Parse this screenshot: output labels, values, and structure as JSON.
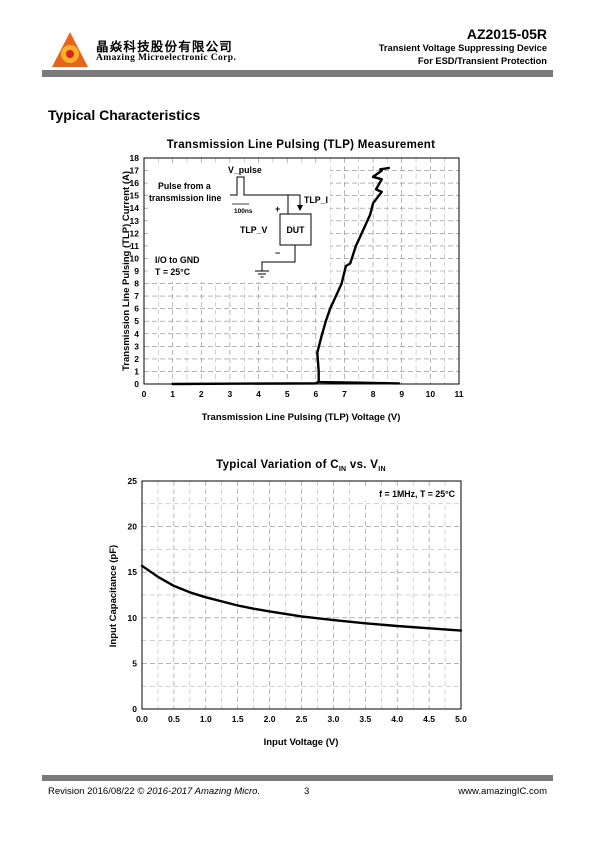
{
  "header": {
    "company_cn": "晶焱科技股份有限公司",
    "company_en": "Amazing Microelectronic Corp.",
    "part_number": "AZ2015-05R",
    "description_line1": "Transient Voltage Suppressing Device",
    "description_line2": "For ESD/Transient Protection",
    "logo_colors": {
      "outer": "#e8631c",
      "inner": "#f6b02a",
      "core": "#d8231f"
    }
  },
  "section_title": "Typical Characteristics",
  "chart_data": [
    {
      "type": "line",
      "title": "Transmission Line Pulsing (TLP) Measurement",
      "xlabel": "Transmission Line Pulsing (TLP) Voltage (V)",
      "ylabel": "Transmission Line Pulsing (TLP) Current (A)",
      "xlim": [
        0,
        11
      ],
      "ylim": [
        0,
        18
      ],
      "xticks": [
        "0",
        "1",
        "2",
        "3",
        "4",
        "5",
        "6",
        "7",
        "8",
        "9",
        "10",
        "11"
      ],
      "yticks": [
        "0",
        "1",
        "2",
        "3",
        "4",
        "5",
        "6",
        "7",
        "8",
        "9",
        "10",
        "11",
        "12",
        "13",
        "14",
        "15",
        "16",
        "17",
        "18"
      ],
      "grid": "dashed",
      "series": [
        {
          "x": [
            1.0,
            3.0,
            5.0,
            6.0,
            6.1,
            6.1,
            6.05,
            6.2,
            6.35,
            6.5,
            6.7,
            6.9,
            7.05,
            7.2,
            7.4,
            7.5,
            7.7,
            7.9,
            8.0,
            8.2,
            8.3,
            8.1,
            8.3,
            8.0,
            8.3,
            8.25,
            8.55
          ],
          "y": [
            0.0,
            0.02,
            0.04,
            0.05,
            0.2,
            1.0,
            2.5,
            3.8,
            5.0,
            6.0,
            7.0,
            8.0,
            9.4,
            9.6,
            11.0,
            11.5,
            12.5,
            13.5,
            14.4,
            15.0,
            15.3,
            15.5,
            16.3,
            16.5,
            17.0,
            17.1,
            17.2
          ]
        },
        {
          "x": [
            6.1,
            7.0,
            8.0,
            8.9
          ],
          "y": [
            0.15,
            0.12,
            0.08,
            0.05
          ]
        }
      ],
      "inset": {
        "v_pulse": "V_pulse",
        "pulse_line1": "Pulse from a",
        "pulse_line2": "transmission line",
        "pulse_width": "100ns",
        "tlp_i": "TLP_I",
        "plus": "+",
        "tlp_v": "TLP_V",
        "dut": "DUT",
        "minus": "−",
        "io": "I/O to GND",
        "temp": "T = 25°C"
      }
    },
    {
      "type": "line",
      "title": "Typical Variation of C",
      "title_sub1": "IN",
      "title_mid": " vs. V",
      "title_sub2": "IN",
      "xlabel": "Input Voltage (V)",
      "ylabel": "Input Capacitance (pF)",
      "xlim": [
        0,
        5
      ],
      "ylim": [
        0,
        25
      ],
      "xticks": [
        "0.0",
        "0.5",
        "1.0",
        "1.5",
        "2.0",
        "2.5",
        "3.0",
        "3.5",
        "4.0",
        "4.5",
        "5.0"
      ],
      "yticks": [
        "0",
        "5",
        "10",
        "15",
        "20",
        "25"
      ],
      "grid": "dashed",
      "annotation": "f = 1MHz, T = 25°C",
      "series": [
        {
          "x": [
            0.0,
            0.25,
            0.5,
            0.75,
            1.0,
            1.25,
            1.5,
            1.75,
            2.0,
            2.5,
            3.0,
            3.5,
            4.0,
            4.5,
            5.0
          ],
          "y": [
            15.7,
            14.5,
            13.5,
            12.8,
            12.25,
            11.8,
            11.35,
            11.0,
            10.7,
            10.15,
            9.75,
            9.4,
            9.1,
            8.85,
            8.6
          ]
        }
      ]
    }
  ],
  "footer": {
    "revision": "Revision 2016/08/22",
    "copyright": "© 2016-2017 Amazing Micro.",
    "page": "3",
    "website": "www.amazingIC.com"
  }
}
